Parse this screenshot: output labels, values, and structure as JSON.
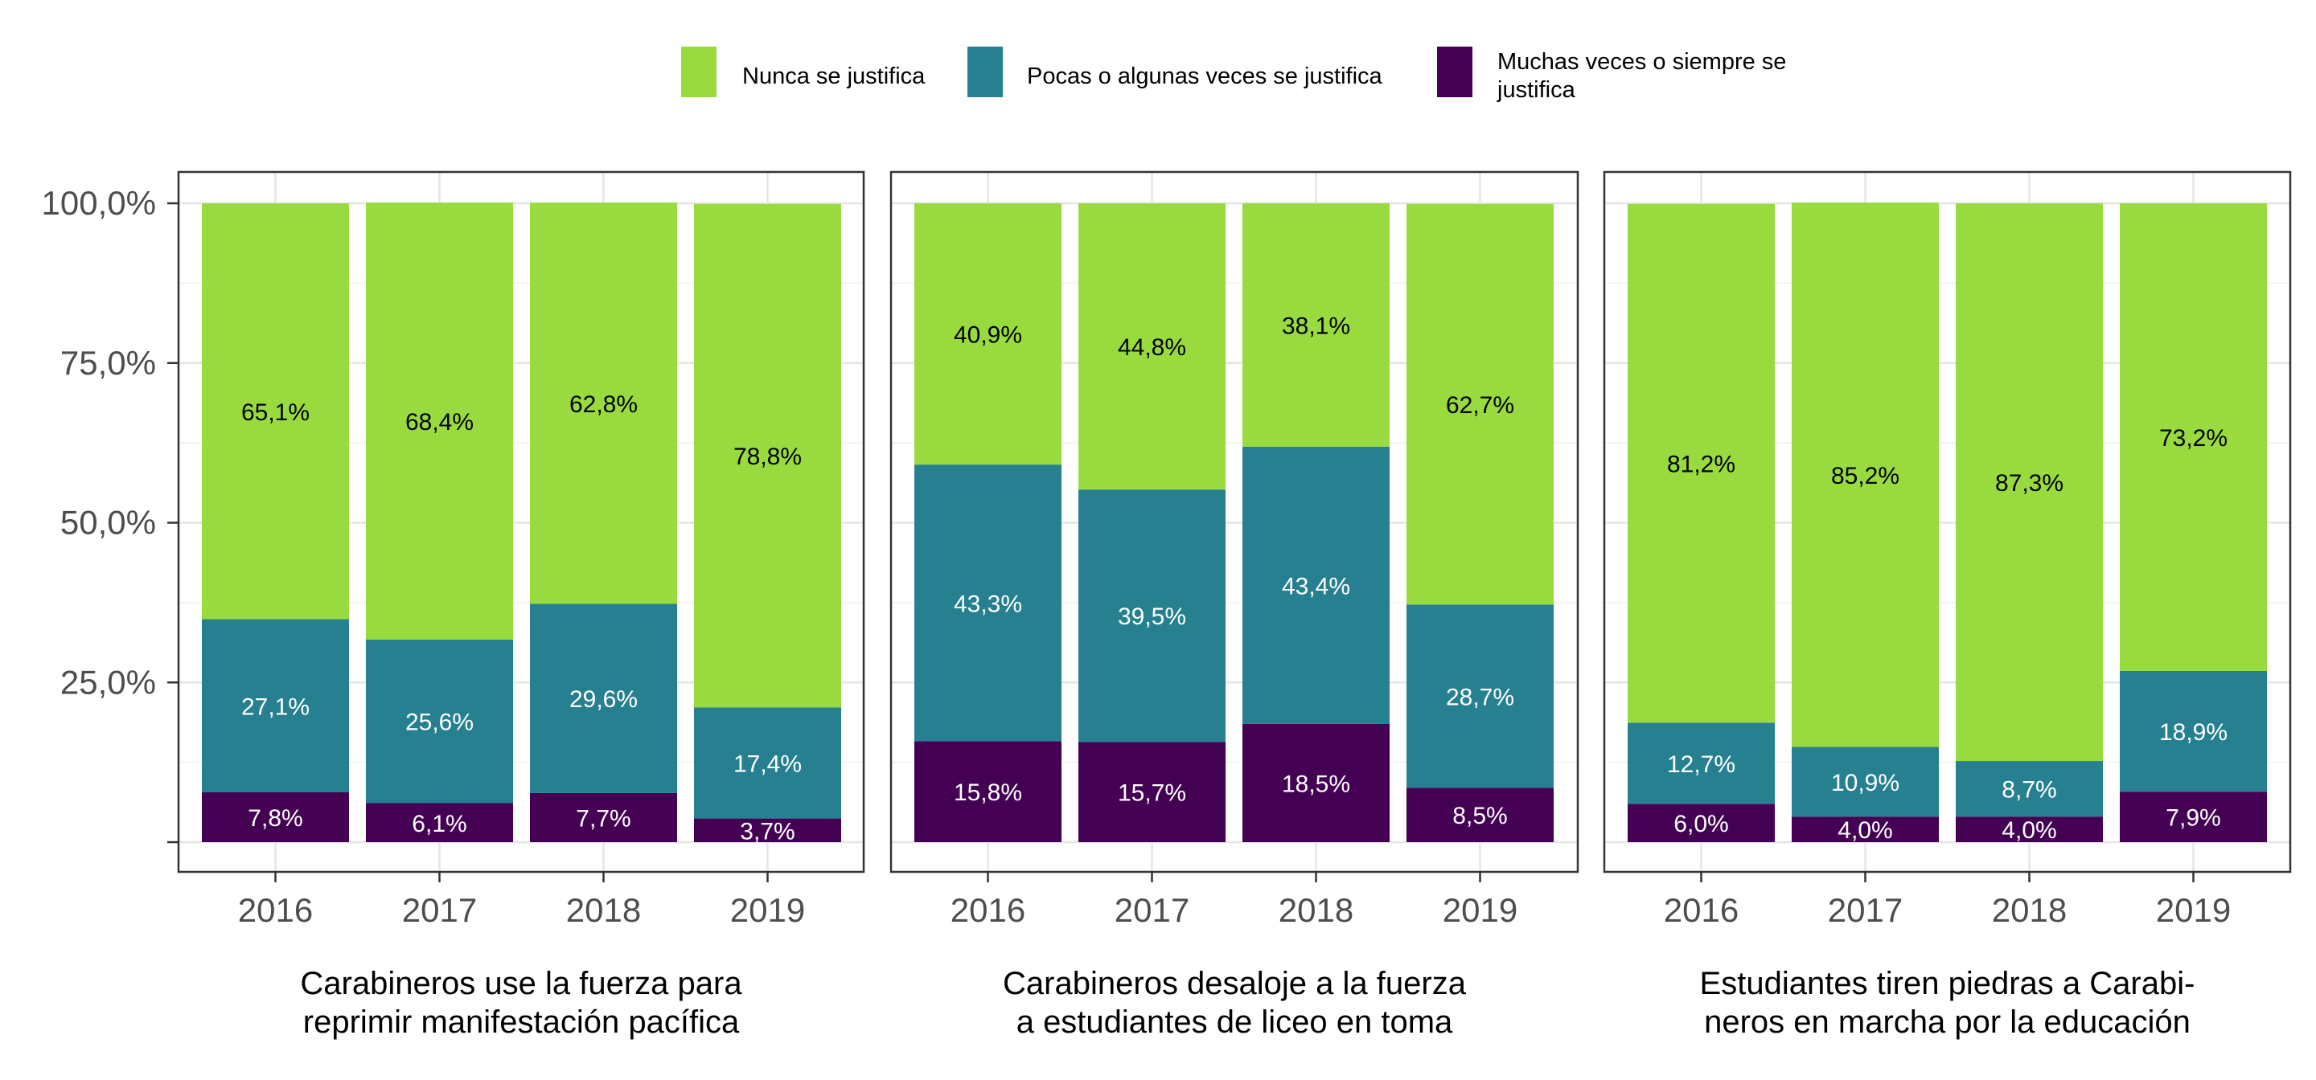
{
  "legend": {
    "items": [
      {
        "label": "Nunca se justifica",
        "color": "#99DB3F"
      },
      {
        "label": "Pocas o algunas veces se justifica",
        "color": "#26808F"
      },
      {
        "label": "Muchas veces o siempre se justifica",
        "label_lines": [
          "Muchas veces o siempre se",
          "justifica"
        ],
        "color": "#440154"
      }
    ]
  },
  "chart_data": {
    "type": "bar",
    "stacked": true,
    "ylim": [
      0,
      100
    ],
    "y_ticks": [
      {
        "value": 0,
        "label": ""
      },
      {
        "value": 25,
        "label": "25,0%"
      },
      {
        "value": 50,
        "label": "50,0%"
      },
      {
        "value": 75,
        "label": "75,0%"
      },
      {
        "value": 100,
        "label": "100,0%"
      }
    ],
    "grid": true,
    "legend_position": "top",
    "categories": [
      "2016",
      "2017",
      "2018",
      "2019"
    ],
    "panels": [
      {
        "title_lines": [
          "Carabineros use la fuerza para",
          "reprimir manifestación pacífica"
        ],
        "series": [
          {
            "name": "Muchas veces o siempre se justifica",
            "values": [
              7.8,
              6.1,
              7.7,
              3.7
            ],
            "labels": [
              "7,8%",
              "6,1%",
              "7,7%",
              "3,7%"
            ]
          },
          {
            "name": "Pocas o algunas veces se justifica",
            "values": [
              27.1,
              25.6,
              29.6,
              17.4
            ],
            "labels": [
              "27,1%",
              "25,6%",
              "29,6%",
              "17,4%"
            ]
          },
          {
            "name": "Nunca se justifica",
            "values": [
              65.1,
              68.4,
              62.8,
              78.8
            ],
            "labels": [
              "65,1%",
              "68,4%",
              "62,8%",
              "78,8%"
            ]
          }
        ]
      },
      {
        "title_lines": [
          "Carabineros desaloje a la fuerza",
          "a estudiantes de liceo en toma"
        ],
        "series": [
          {
            "name": "Muchas veces o siempre se justifica",
            "values": [
              15.8,
              15.7,
              18.5,
              8.5
            ],
            "labels": [
              "15,8%",
              "15,7%",
              "18,5%",
              "8,5%"
            ]
          },
          {
            "name": "Pocas o algunas veces se justifica",
            "values": [
              43.3,
              39.5,
              43.4,
              28.7
            ],
            "labels": [
              "43,3%",
              "39,5%",
              "43,4%",
              "28,7%"
            ]
          },
          {
            "name": "Nunca se justifica",
            "values": [
              40.9,
              44.8,
              38.1,
              62.7
            ],
            "labels": [
              "40,9%",
              "44,8%",
              "38,1%",
              "62,7%"
            ]
          }
        ]
      },
      {
        "title_lines": [
          "Estudiantes tiren piedras a Carabi-",
          "neros en marcha por la educación"
        ],
        "series": [
          {
            "name": "Muchas veces o siempre se justifica",
            "values": [
              6.0,
              4.0,
              4.0,
              7.9
            ],
            "labels": [
              "6,0%",
              "4,0%",
              "4,0%",
              "7,9%"
            ]
          },
          {
            "name": "Pocas o algunas veces se justifica",
            "values": [
              12.7,
              10.9,
              8.7,
              18.9
            ],
            "labels": [
              "12,7%",
              "10,9%",
              "8,7%",
              "18,9%"
            ]
          },
          {
            "name": "Nunca se justifica",
            "values": [
              81.2,
              85.2,
              87.3,
              73.2
            ],
            "labels": [
              "81,2%",
              "85,2%",
              "87,3%",
              "73,2%"
            ]
          }
        ]
      }
    ]
  }
}
